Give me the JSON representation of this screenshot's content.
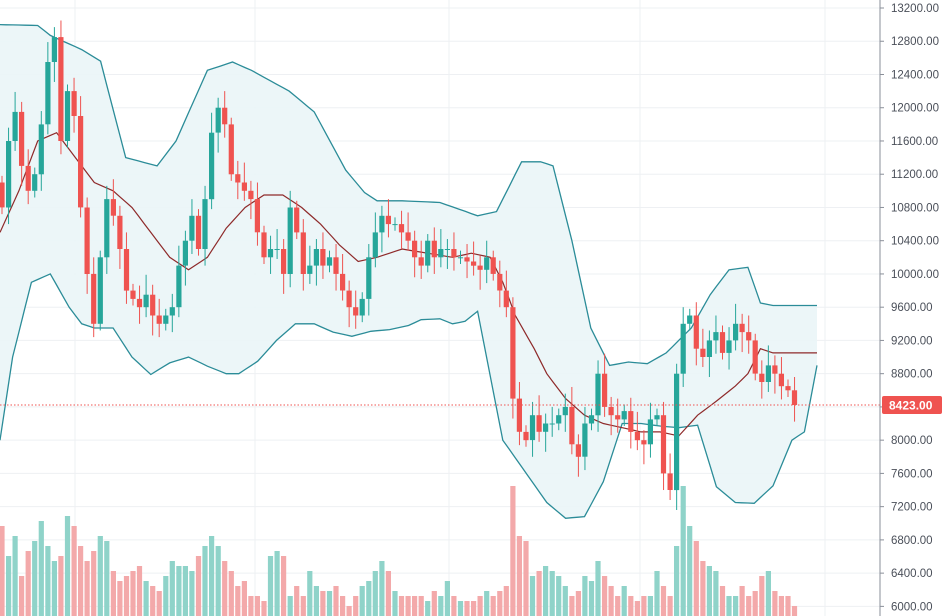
{
  "chart_data": {
    "type": "candlestick",
    "indicators": [
      "bollinger_bands",
      "volume"
    ],
    "y_axis": {
      "range": [
        5900,
        13250
      ],
      "ticks": [
        "13200.00",
        "12800.00",
        "12400.00",
        "12000.00",
        "11600.00",
        "11200.00",
        "10800.00",
        "10400.00",
        "10000.00",
        "9600.00",
        "9200.00",
        "8800.00",
        "8400.00",
        "8000.00",
        "7600.00",
        "7200.00",
        "6800.00",
        "6400.00",
        "6000.00"
      ],
      "tick_values": [
        13200,
        12800,
        12400,
        12000,
        11600,
        11200,
        10800,
        10400,
        10000,
        9600,
        9200,
        8800,
        8400,
        8000,
        7600,
        7200,
        6800,
        6400,
        6000
      ]
    },
    "last_price": {
      "label": "8423.00",
      "value": 8423
    },
    "candles_close": [
      10800,
      11600,
      11950,
      11300,
      11000,
      11200,
      11800,
      12550,
      12850,
      11600,
      12200,
      11900,
      10800,
      10000,
      9400,
      10200,
      10900,
      10700,
      10300,
      9800,
      9700,
      9600,
      9750,
      9500,
      9400,
      9500,
      9600,
      10100,
      10400,
      10700,
      10300,
      10900,
      11700,
      12000,
      11800,
      11200,
      11100,
      11000,
      10900,
      10500,
      10200,
      10300,
      10300,
      10000,
      10800,
      10500,
      10000,
      10100,
      10300,
      10100,
      10200,
      10000,
      9800,
      9600,
      9500,
      9700,
      10200,
      10500,
      10700,
      10600,
      10600,
      10500,
      10400,
      10200,
      10100,
      10400,
      10200,
      10300,
      10300,
      10200,
      10200,
      10150,
      10100,
      10050,
      10200,
      10000,
      9800,
      9600,
      8500,
      8100,
      8000,
      8300,
      8100,
      8200,
      8200,
      8300,
      8400,
      7950,
      7800,
      8200,
      8300,
      8800,
      8400,
      8300,
      8250,
      8350,
      8100,
      8000,
      7950,
      8250,
      8300,
      7600,
      7400,
      8800,
      9400,
      9500,
      9100,
      9000,
      9200,
      9300,
      9050,
      9200,
      9400,
      9300,
      9200,
      8800,
      8700,
      8900,
      8800,
      8650,
      8600,
      8423
    ],
    "bb_upper_anchors": [
      [
        0,
        13000
      ],
      [
        6,
        12990
      ],
      [
        8,
        12870
      ],
      [
        13,
        12700
      ],
      [
        16,
        12560
      ],
      [
        20,
        11400
      ],
      [
        25,
        11300
      ],
      [
        28,
        11600
      ],
      [
        33,
        12450
      ],
      [
        37,
        12550
      ],
      [
        40,
        12450
      ],
      [
        46,
        12200
      ],
      [
        50,
        11950
      ],
      [
        55,
        11250
      ],
      [
        58,
        10980
      ],
      [
        60,
        10880
      ],
      [
        64,
        10880
      ],
      [
        70,
        10860
      ],
      [
        73,
        10780
      ],
      [
        76,
        10700
      ],
      [
        79,
        10750
      ],
      [
        83,
        11350
      ],
      [
        86,
        11350
      ],
      [
        88,
        11300
      ],
      [
        91,
        10400
      ],
      [
        94,
        9350
      ],
      [
        97,
        8900
      ],
      [
        100,
        8940
      ],
      [
        103,
        8920
      ],
      [
        106,
        9050
      ],
      [
        110,
        9350
      ],
      [
        113,
        9750
      ],
      [
        116,
        10050
      ],
      [
        119,
        10080
      ],
      [
        121,
        9650
      ],
      [
        123,
        9620
      ]
    ],
    "bb_lower_anchors": [
      [
        0,
        8000
      ],
      [
        2,
        9000
      ],
      [
        5,
        9900
      ],
      [
        8,
        10000
      ],
      [
        11,
        9600
      ],
      [
        13,
        9400
      ],
      [
        15,
        9350
      ],
      [
        18,
        9350
      ],
      [
        21,
        9000
      ],
      [
        24,
        8790
      ],
      [
        27,
        8930
      ],
      [
        30,
        9000
      ],
      [
        33,
        8890
      ],
      [
        36,
        8800
      ],
      [
        38,
        8800
      ],
      [
        41,
        8950
      ],
      [
        44,
        9200
      ],
      [
        47,
        9400
      ],
      [
        50,
        9400
      ],
      [
        53,
        9300
      ],
      [
        56,
        9250
      ],
      [
        59,
        9310
      ],
      [
        62,
        9330
      ],
      [
        65,
        9380
      ],
      [
        67,
        9450
      ],
      [
        70,
        9460
      ],
      [
        72,
        9400
      ],
      [
        74,
        9430
      ],
      [
        76,
        9550
      ],
      [
        80,
        8000
      ],
      [
        83,
        7680
      ],
      [
        87,
        7250
      ],
      [
        90,
        7060
      ],
      [
        93,
        7080
      ],
      [
        96,
        7500
      ],
      [
        99,
        8200
      ],
      [
        102,
        8200
      ],
      [
        105,
        8170
      ],
      [
        108,
        8150
      ],
      [
        111,
        8180
      ],
      [
        114,
        7440
      ],
      [
        117,
        7250
      ],
      [
        120,
        7240
      ],
      [
        123,
        7450
      ],
      [
        126,
        8000
      ],
      [
        128,
        8100
      ],
      [
        130,
        8900
      ]
    ],
    "bb_middle_anchors": [
      [
        0,
        10500
      ],
      [
        3,
        11000
      ],
      [
        6,
        11600
      ],
      [
        9,
        11700
      ],
      [
        12,
        11400
      ],
      [
        15,
        11100
      ],
      [
        18,
        11000
      ],
      [
        21,
        10800
      ],
      [
        24,
        10500
      ],
      [
        27,
        10200
      ],
      [
        30,
        10050
      ],
      [
        33,
        10200
      ],
      [
        36,
        10550
      ],
      [
        39,
        10800
      ],
      [
        42,
        10950
      ],
      [
        45,
        10950
      ],
      [
        48,
        10800
      ],
      [
        51,
        10600
      ],
      [
        54,
        10350
      ],
      [
        57,
        10150
      ],
      [
        60,
        10200
      ],
      [
        64,
        10300
      ],
      [
        68,
        10250
      ],
      [
        72,
        10200
      ],
      [
        75,
        10250
      ],
      [
        78,
        10200
      ],
      [
        80,
        9900
      ],
      [
        82,
        9500
      ],
      [
        85,
        9100
      ],
      [
        87,
        8800
      ],
      [
        90,
        8500
      ],
      [
        93,
        8300
      ],
      [
        96,
        8200
      ],
      [
        99,
        8150
      ],
      [
        102,
        8100
      ],
      [
        105,
        8100
      ],
      [
        108,
        8050
      ],
      [
        111,
        8300
      ],
      [
        114,
        8470
      ],
      [
        117,
        8650
      ],
      [
        119,
        8800
      ],
      [
        121,
        9100
      ],
      [
        123,
        9050
      ]
    ],
    "volume_heights": [
      90,
      60,
      80,
      40,
      65,
      75,
      95,
      70,
      55,
      60,
      100,
      90,
      70,
      55,
      65,
      80,
      75,
      45,
      35,
      40,
      45,
      50,
      35,
      30,
      25,
      40,
      55,
      50,
      50,
      45,
      60,
      70,
      80,
      70,
      55,
      45,
      30,
      35,
      20,
      20,
      15,
      60,
      65,
      60,
      20,
      30,
      20,
      45,
      30,
      25,
      25,
      30,
      20,
      10,
      20,
      30,
      35,
      45,
      55,
      45,
      25,
      20,
      20,
      20,
      20,
      15,
      25,
      20,
      35,
      20,
      15,
      15,
      15,
      20,
      25,
      20,
      25,
      30,
      130,
      80,
      75,
      40,
      45,
      50,
      45,
      40,
      30,
      20,
      25,
      40,
      35,
      55,
      40,
      30,
      20,
      30,
      20,
      15,
      20,
      20,
      45,
      30,
      20,
      70,
      130,
      90,
      75,
      55,
      50,
      45,
      30,
      20,
      20,
      30,
      20,
      25,
      40,
      45,
      25,
      20,
      20,
      10
    ]
  }
}
